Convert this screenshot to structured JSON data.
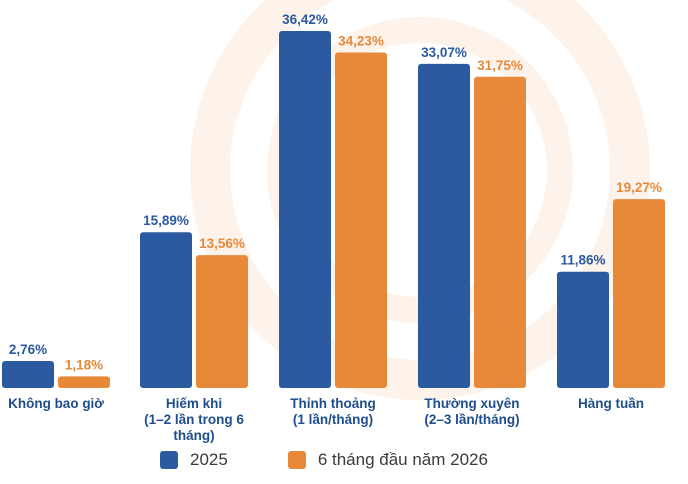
{
  "colors": {
    "series_2025": "#2b5aa0",
    "series_2026": "#e8893a",
    "category_text": "#1f4e8c"
  },
  "chart_data": {
    "type": "bar",
    "categories": [
      [
        "Không bao giờ"
      ],
      [
        "Hiếm khi",
        "(1–2 lần trong 6",
        "tháng)"
      ],
      [
        "Thỉnh thoảng",
        "(1 lần/tháng)"
      ],
      [
        "Thường xuyên",
        "(2–3 lần/tháng)"
      ],
      [
        "Hàng tuần"
      ]
    ],
    "series": [
      {
        "name": "2025",
        "values": [
          2.76,
          15.89,
          36.42,
          33.07,
          11.86
        ],
        "labels": [
          "2,76%",
          "15,89%",
          "36,42%",
          "33,07%",
          "11,86%"
        ]
      },
      {
        "name": "6 tháng đầu năm 2026",
        "values": [
          1.18,
          13.56,
          34.23,
          31.75,
          19.27
        ],
        "labels": [
          "1,18%",
          "13,56%",
          "34,23%",
          "31,75%",
          "19,27%"
        ]
      }
    ],
    "ylim": [
      0,
      36.42
    ],
    "legend_position": "bottom"
  }
}
